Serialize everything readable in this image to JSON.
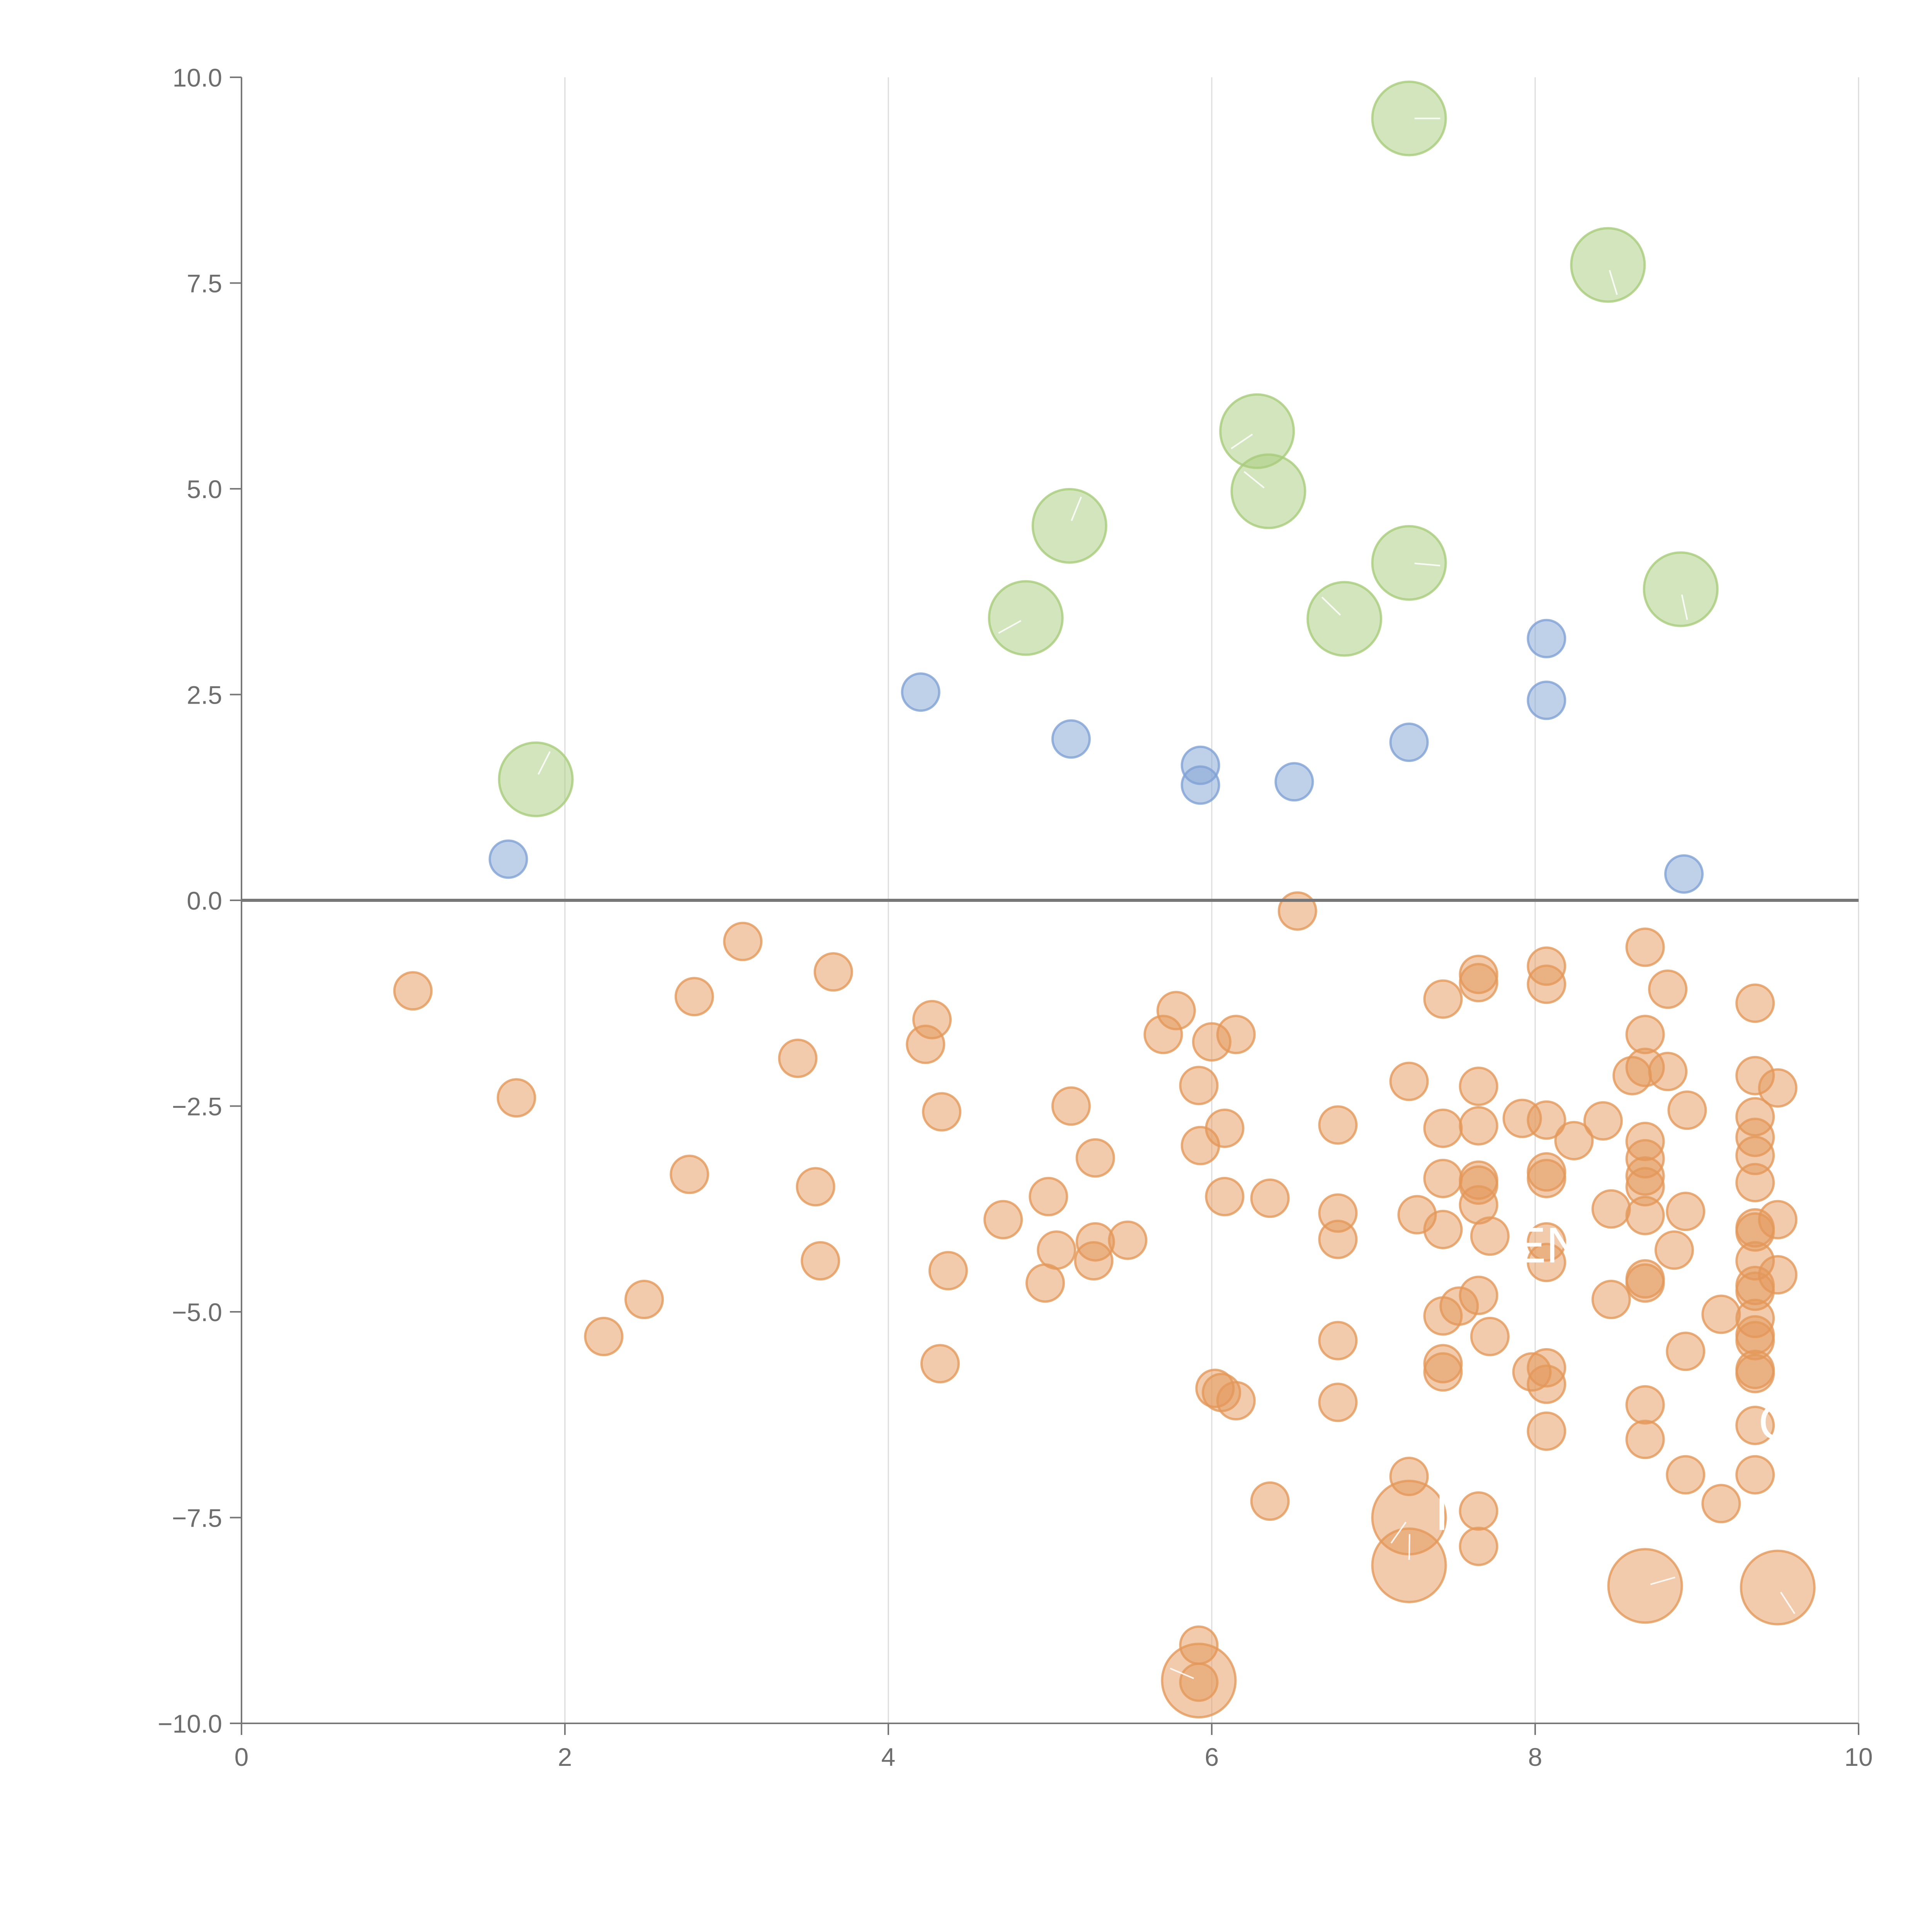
{
  "chart_data": {
    "type": "scatter",
    "title": "",
    "xlabel": "",
    "ylabel": "",
    "xlim": [
      0,
      10
    ],
    "ylim": [
      -10,
      10
    ],
    "x_ticks": [
      0,
      2,
      4,
      6,
      8,
      10
    ],
    "x_tick_labels": [
      "0",
      "2",
      "4",
      "6",
      "8",
      "10"
    ],
    "y_ticks": [
      -10,
      -7.5,
      -5,
      -2.5,
      0,
      2.5,
      5,
      7.5,
      10
    ],
    "y_tick_labels": [
      "−10.0",
      "−7.5",
      "−5.0",
      "−2.5",
      "0.0",
      "2.5",
      "5.0",
      "7.5",
      "10.0"
    ],
    "grid": "vertical",
    "legend": "none",
    "colors": {
      "green": "#a8cc7a",
      "blue": "#7fa1d4",
      "orange": "#e3985a"
    },
    "series": [
      {
        "name": "green",
        "color": "#a8cc7a",
        "points": [
          [
            7.22,
            9.5,
            3
          ],
          [
            8.45,
            7.72,
            3
          ],
          [
            6.28,
            5.7,
            3
          ],
          [
            6.35,
            4.97,
            3
          ],
          [
            5.12,
            4.55,
            3
          ],
          [
            7.22,
            4.1,
            3
          ],
          [
            8.9,
            3.78,
            3
          ],
          [
            4.85,
            3.43,
            3
          ],
          [
            6.82,
            3.42,
            3
          ],
          [
            1.82,
            1.47,
            3
          ]
        ]
      },
      {
        "name": "blue",
        "color": "#7fa1d4",
        "points": [
          [
            8.07,
            3.18,
            1
          ],
          [
            4.2,
            2.53,
            1
          ],
          [
            8.07,
            2.43,
            1
          ],
          [
            5.13,
            1.96,
            1
          ],
          [
            7.22,
            1.92,
            1
          ],
          [
            5.93,
            1.64,
            1
          ],
          [
            6.51,
            1.44,
            1
          ],
          [
            5.93,
            1.4,
            1
          ],
          [
            1.65,
            0.5,
            1
          ],
          [
            8.92,
            0.32,
            1
          ]
        ]
      },
      {
        "name": "orange",
        "color": "#e3985a",
        "points": [
          [
            6.53,
            -0.13,
            1
          ],
          [
            3.1,
            -0.5,
            1
          ],
          [
            8.68,
            -0.57,
            1
          ],
          [
            3.66,
            -0.87,
            1
          ],
          [
            8.07,
            -0.8,
            1
          ],
          [
            7.65,
            -0.9,
            1
          ],
          [
            7.65,
            -1.0,
            1
          ],
          [
            8.07,
            -1.02,
            1
          ],
          [
            1.06,
            -1.1,
            1
          ],
          [
            8.82,
            -1.08,
            1
          ],
          [
            2.8,
            -1.17,
            1
          ],
          [
            7.43,
            -1.2,
            1
          ],
          [
            9.36,
            -1.25,
            1
          ],
          [
            5.78,
            -1.34,
            1
          ],
          [
            4.27,
            -1.45,
            1
          ],
          [
            5.7,
            -1.63,
            1
          ],
          [
            6.15,
            -1.63,
            1
          ],
          [
            8.68,
            -1.63,
            1
          ],
          [
            4.23,
            -1.75,
            1
          ],
          [
            6.0,
            -1.72,
            1
          ],
          [
            3.44,
            -1.92,
            1
          ],
          [
            8.68,
            -2.03,
            1
          ],
          [
            8.6,
            -2.13,
            1
          ],
          [
            8.82,
            -2.08,
            1
          ],
          [
            9.36,
            -2.13,
            1
          ],
          [
            7.22,
            -2.2,
            1
          ],
          [
            5.92,
            -2.25,
            1
          ],
          [
            7.65,
            -2.26,
            1
          ],
          [
            9.5,
            -2.28,
            1
          ],
          [
            1.7,
            -2.4,
            1
          ],
          [
            5.13,
            -2.5,
            1
          ],
          [
            4.33,
            -2.57,
            1
          ],
          [
            8.94,
            -2.55,
            1
          ],
          [
            7.92,
            -2.65,
            1
          ],
          [
            8.42,
            -2.68,
            1
          ],
          [
            8.07,
            -2.67,
            1
          ],
          [
            9.36,
            -2.63,
            1
          ],
          [
            6.78,
            -2.73,
            1
          ],
          [
            7.43,
            -2.77,
            1
          ],
          [
            7.65,
            -2.74,
            1
          ],
          [
            6.08,
            -2.77,
            1
          ],
          [
            8.24,
            -2.92,
            1
          ],
          [
            8.68,
            -2.93,
            1
          ],
          [
            9.36,
            -2.88,
            1
          ],
          [
            5.93,
            -2.98,
            1
          ],
          [
            5.28,
            -3.13,
            1
          ],
          [
            8.68,
            -3.14,
            1
          ],
          [
            9.36,
            -3.1,
            1
          ],
          [
            2.77,
            -3.33,
            1
          ],
          [
            8.07,
            -3.3,
            1
          ],
          [
            8.07,
            -3.38,
            1
          ],
          [
            7.65,
            -3.4,
            1
          ],
          [
            7.43,
            -3.38,
            1
          ],
          [
            8.68,
            -3.35,
            1
          ],
          [
            7.65,
            -3.46,
            1
          ],
          [
            9.36,
            -3.43,
            1
          ],
          [
            3.55,
            -3.48,
            1
          ],
          [
            8.68,
            -3.48,
            1
          ],
          [
            4.99,
            -3.6,
            1
          ],
          [
            6.08,
            -3.6,
            1
          ],
          [
            6.36,
            -3.62,
            1
          ],
          [
            7.65,
            -3.7,
            1
          ],
          [
            8.47,
            -3.75,
            1
          ],
          [
            6.78,
            -3.8,
            1
          ],
          [
            7.27,
            -3.82,
            1
          ],
          [
            8.68,
            -3.83,
            1
          ],
          [
            8.93,
            -3.78,
            1
          ],
          [
            4.71,
            -3.88,
            1
          ],
          [
            9.5,
            -3.88,
            1
          ],
          [
            7.43,
            -4.0,
            1
          ],
          [
            9.36,
            -3.98,
            1
          ],
          [
            9.36,
            -4.03,
            1
          ],
          [
            7.72,
            -4.08,
            1
          ],
          [
            6.78,
            -4.12,
            1
          ],
          [
            5.48,
            -4.13,
            1
          ],
          [
            5.28,
            -4.15,
            1
          ],
          [
            8.07,
            -4.15,
            1
          ],
          [
            5.04,
            -4.25,
            1
          ],
          [
            8.86,
            -4.25,
            1
          ],
          [
            3.58,
            -4.38,
            1
          ],
          [
            5.27,
            -4.38,
            1
          ],
          [
            8.07,
            -4.4,
            1
          ],
          [
            9.36,
            -4.38,
            1
          ],
          [
            4.37,
            -4.5,
            1
          ],
          [
            9.5,
            -4.55,
            1
          ],
          [
            8.68,
            -4.6,
            1
          ],
          [
            8.68,
            -4.65,
            1
          ],
          [
            4.97,
            -4.65,
            1
          ],
          [
            9.36,
            -4.68,
            1
          ],
          [
            9.36,
            -4.75,
            1
          ],
          [
            7.65,
            -4.8,
            1
          ],
          [
            8.47,
            -4.85,
            1
          ],
          [
            2.49,
            -4.85,
            1
          ],
          [
            7.53,
            -4.93,
            1
          ],
          [
            9.15,
            -5.03,
            1
          ],
          [
            7.43,
            -5.05,
            1
          ],
          [
            9.36,
            -5.08,
            1
          ],
          [
            2.24,
            -5.3,
            1
          ],
          [
            9.36,
            -5.28,
            1
          ],
          [
            7.72,
            -5.3,
            1
          ],
          [
            9.36,
            -5.35,
            1
          ],
          [
            6.78,
            -5.35,
            1
          ],
          [
            8.93,
            -5.48,
            1
          ],
          [
            4.32,
            -5.63,
            1
          ],
          [
            7.43,
            -5.63,
            1
          ],
          [
            8.07,
            -5.68,
            1
          ],
          [
            9.36,
            -5.7,
            1
          ],
          [
            7.98,
            -5.73,
            1
          ],
          [
            7.43,
            -5.73,
            1
          ],
          [
            9.36,
            -5.75,
            1
          ],
          [
            8.07,
            -5.88,
            1
          ],
          [
            6.02,
            -5.93,
            1
          ],
          [
            6.06,
            -5.98,
            1
          ],
          [
            6.15,
            -6.08,
            1
          ],
          [
            6.78,
            -6.1,
            1
          ],
          [
            8.68,
            -6.13,
            1
          ],
          [
            9.36,
            -6.38,
            1
          ],
          [
            8.07,
            -6.45,
            1
          ],
          [
            8.68,
            -6.55,
            1
          ],
          [
            7.22,
            -7.0,
            1
          ],
          [
            8.93,
            -6.98,
            1
          ],
          [
            9.36,
            -6.98,
            1
          ],
          [
            6.36,
            -7.3,
            1
          ],
          [
            9.15,
            -7.33,
            1
          ],
          [
            7.65,
            -7.42,
            1
          ],
          [
            7.22,
            -7.5,
            3
          ],
          [
            7.65,
            -7.85,
            1
          ],
          [
            7.22,
            -8.08,
            3
          ],
          [
            8.68,
            -8.33,
            3
          ],
          [
            9.5,
            -8.35,
            3
          ],
          [
            5.92,
            -9.05,
            1
          ],
          [
            5.92,
            -9.48,
            3
          ],
          [
            5.92,
            -9.5,
            1
          ]
        ]
      }
    ],
    "annotations": [
      {
        "text": "EN",
        "x": 7.86,
        "y": -4.4
      },
      {
        "text": "C",
        "x": 9.38,
        "y": -6.55
      },
      {
        "text": "I",
        "x": 7.38,
        "y": -7.65
      }
    ]
  }
}
